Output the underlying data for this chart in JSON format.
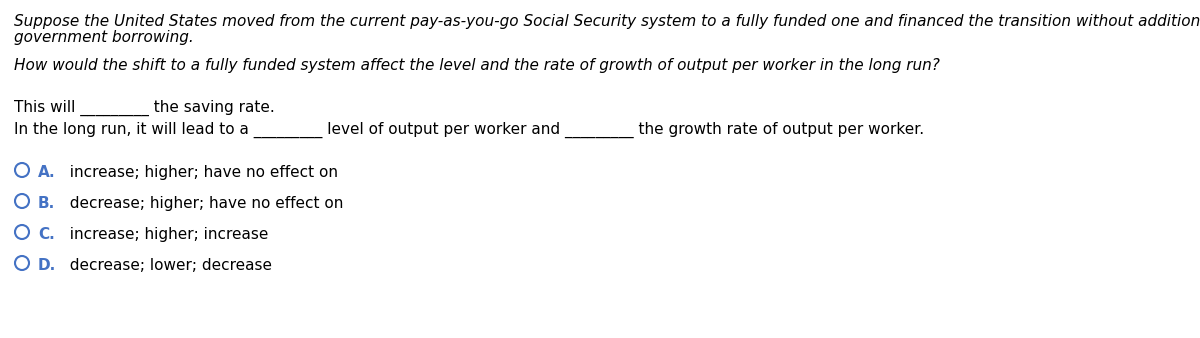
{
  "background_color": "#ffffff",
  "figsize": [
    12.0,
    3.38
  ],
  "dpi": 100,
  "paragraph1_line1": "Suppose the United States moved from the current pay-as-you-go Social Security system to a fully funded one and financed the transition without additional",
  "paragraph1_line2": "government borrowing.",
  "paragraph2": "How would the shift to a fully funded system affect the level and the rate of growth of output per worker in the long run?",
  "paragraph3": "This will _________ the saving rate.",
  "paragraph4": "In the long run, it will lead to a _________ level of output per worker and _________ the growth rate of output per worker.",
  "options": [
    {
      "label": "A.",
      "text": "  increase; higher; have no effect on"
    },
    {
      "label": "B.",
      "text": "  decrease; higher; have no effect on"
    },
    {
      "label": "C.",
      "text": "  increase; higher; increase"
    },
    {
      "label": "D.",
      "text": "  decrease; lower; decrease"
    }
  ],
  "font_size": 11,
  "circle_color": "#4472c4",
  "text_color": "#000000",
  "label_color": "#4472c4"
}
